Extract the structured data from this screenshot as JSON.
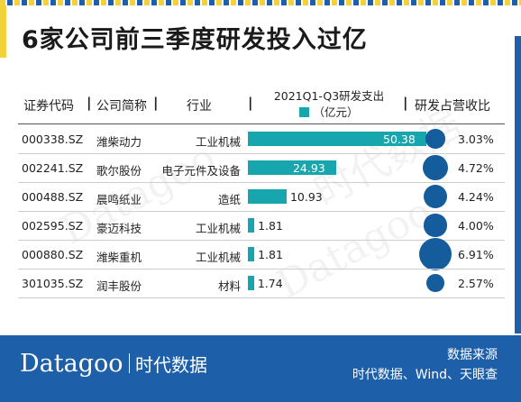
{
  "title": "6家公司前三季度研发投入过亿",
  "headers": {
    "code": "证券代码",
    "name": "公司简称",
    "industry": "行业",
    "rd_line1": "2021Q1-Q3研发支出",
    "rd_line2": "（亿元）",
    "ratio": "研发占营收比",
    "sep": "|"
  },
  "colors": {
    "accent": "#17a6ae",
    "bubble": "#155c9c",
    "footer": "#1d5fa8",
    "stripe_yellow": "#f2d23a",
    "stripe_blue": "#1d5fa8"
  },
  "chart_data": {
    "type": "bar",
    "categories": [
      "潍柴动力",
      "歌尔股份",
      "晨鸣纸业",
      "豪迈科技",
      "潍柴重机",
      "润丰股份"
    ],
    "series": [
      {
        "name": "2021Q1-Q3研发支出（亿元）",
        "values": [
          50.38,
          24.93,
          10.93,
          1.81,
          1.81,
          1.74
        ]
      },
      {
        "name": "研发占营收比",
        "values": [
          3.03,
          4.72,
          4.24,
          4.0,
          6.91,
          2.57
        ]
      }
    ]
  },
  "rows": [
    {
      "code": "000338.SZ",
      "name": "潍柴动力",
      "industry": "工业机械",
      "rd": "50.38",
      "ratio": "3.03%"
    },
    {
      "code": "002241.SZ",
      "name": "歌尔股份",
      "industry": "电子元件及设备",
      "rd": "24.93",
      "ratio": "4.72%"
    },
    {
      "code": "000488.SZ",
      "name": "晨鸣纸业",
      "industry": "造纸",
      "rd": "10.93",
      "ratio": "4.24%"
    },
    {
      "code": "002595.SZ",
      "name": "豪迈科技",
      "industry": "工业机械",
      "rd": "1.81",
      "ratio": "4.00%"
    },
    {
      "code": "000880.SZ",
      "name": "潍柴重机",
      "industry": "工业机械",
      "rd": "1.81",
      "ratio": "6.91%"
    },
    {
      "code": "301035.SZ",
      "name": "润丰股份",
      "industry": "材料",
      "rd": "1.74",
      "ratio": "2.57%"
    }
  ],
  "footer": {
    "brand_en": "Datagoo",
    "brand_cn": "时代数据",
    "source_title": "数据来源",
    "source_text": "时代数据、Wind、天眼查"
  }
}
